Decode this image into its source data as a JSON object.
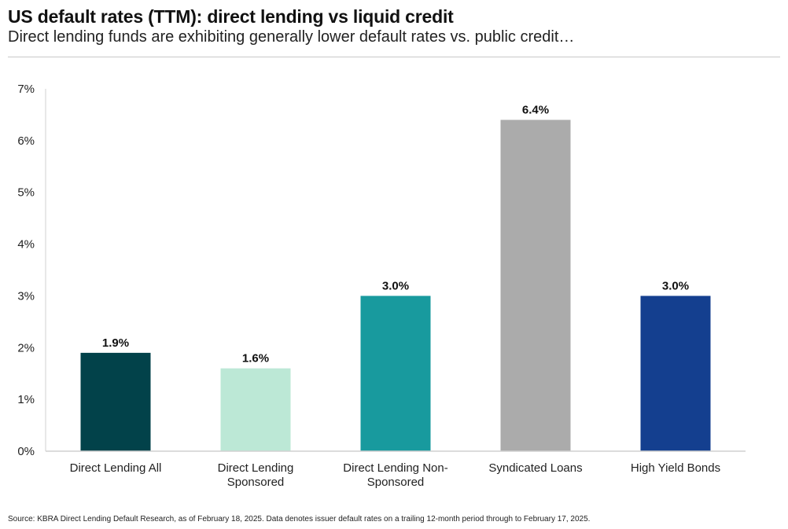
{
  "chart_data": {
    "type": "bar",
    "title": "US default rates (TTM): direct lending vs liquid credit",
    "subtitle": "Direct lending funds are exhibiting generally lower default rates vs. public credit…",
    "categories": [
      [
        "Direct Lending All"
      ],
      [
        "Direct Lending",
        "Sponsored"
      ],
      [
        "Direct Lending Non-",
        "Sponsored"
      ],
      [
        "Syndicated Loans"
      ],
      [
        "High Yield Bonds"
      ]
    ],
    "values": [
      1.9,
      1.6,
      3.0,
      6.4,
      3.0
    ],
    "data_labels": [
      "1.9%",
      "1.6%",
      "3.0%",
      "6.4%",
      "3.0%"
    ],
    "colors": [
      "#02424a",
      "#bce8d6",
      "#189a9e",
      "#ababab",
      "#143f8f"
    ],
    "ylim": [
      0,
      7
    ],
    "yticks": [
      "0%",
      "1%",
      "2%",
      "3%",
      "4%",
      "5%",
      "6%",
      "7%"
    ],
    "xlabel": "",
    "ylabel": "",
    "grid": false,
    "legend": "none"
  },
  "source": "Source: KBRA Direct Lending Default Research, as of February 18, 2025. Data denotes issuer default rates on a trailing 12-month period through to February 17, 2025."
}
